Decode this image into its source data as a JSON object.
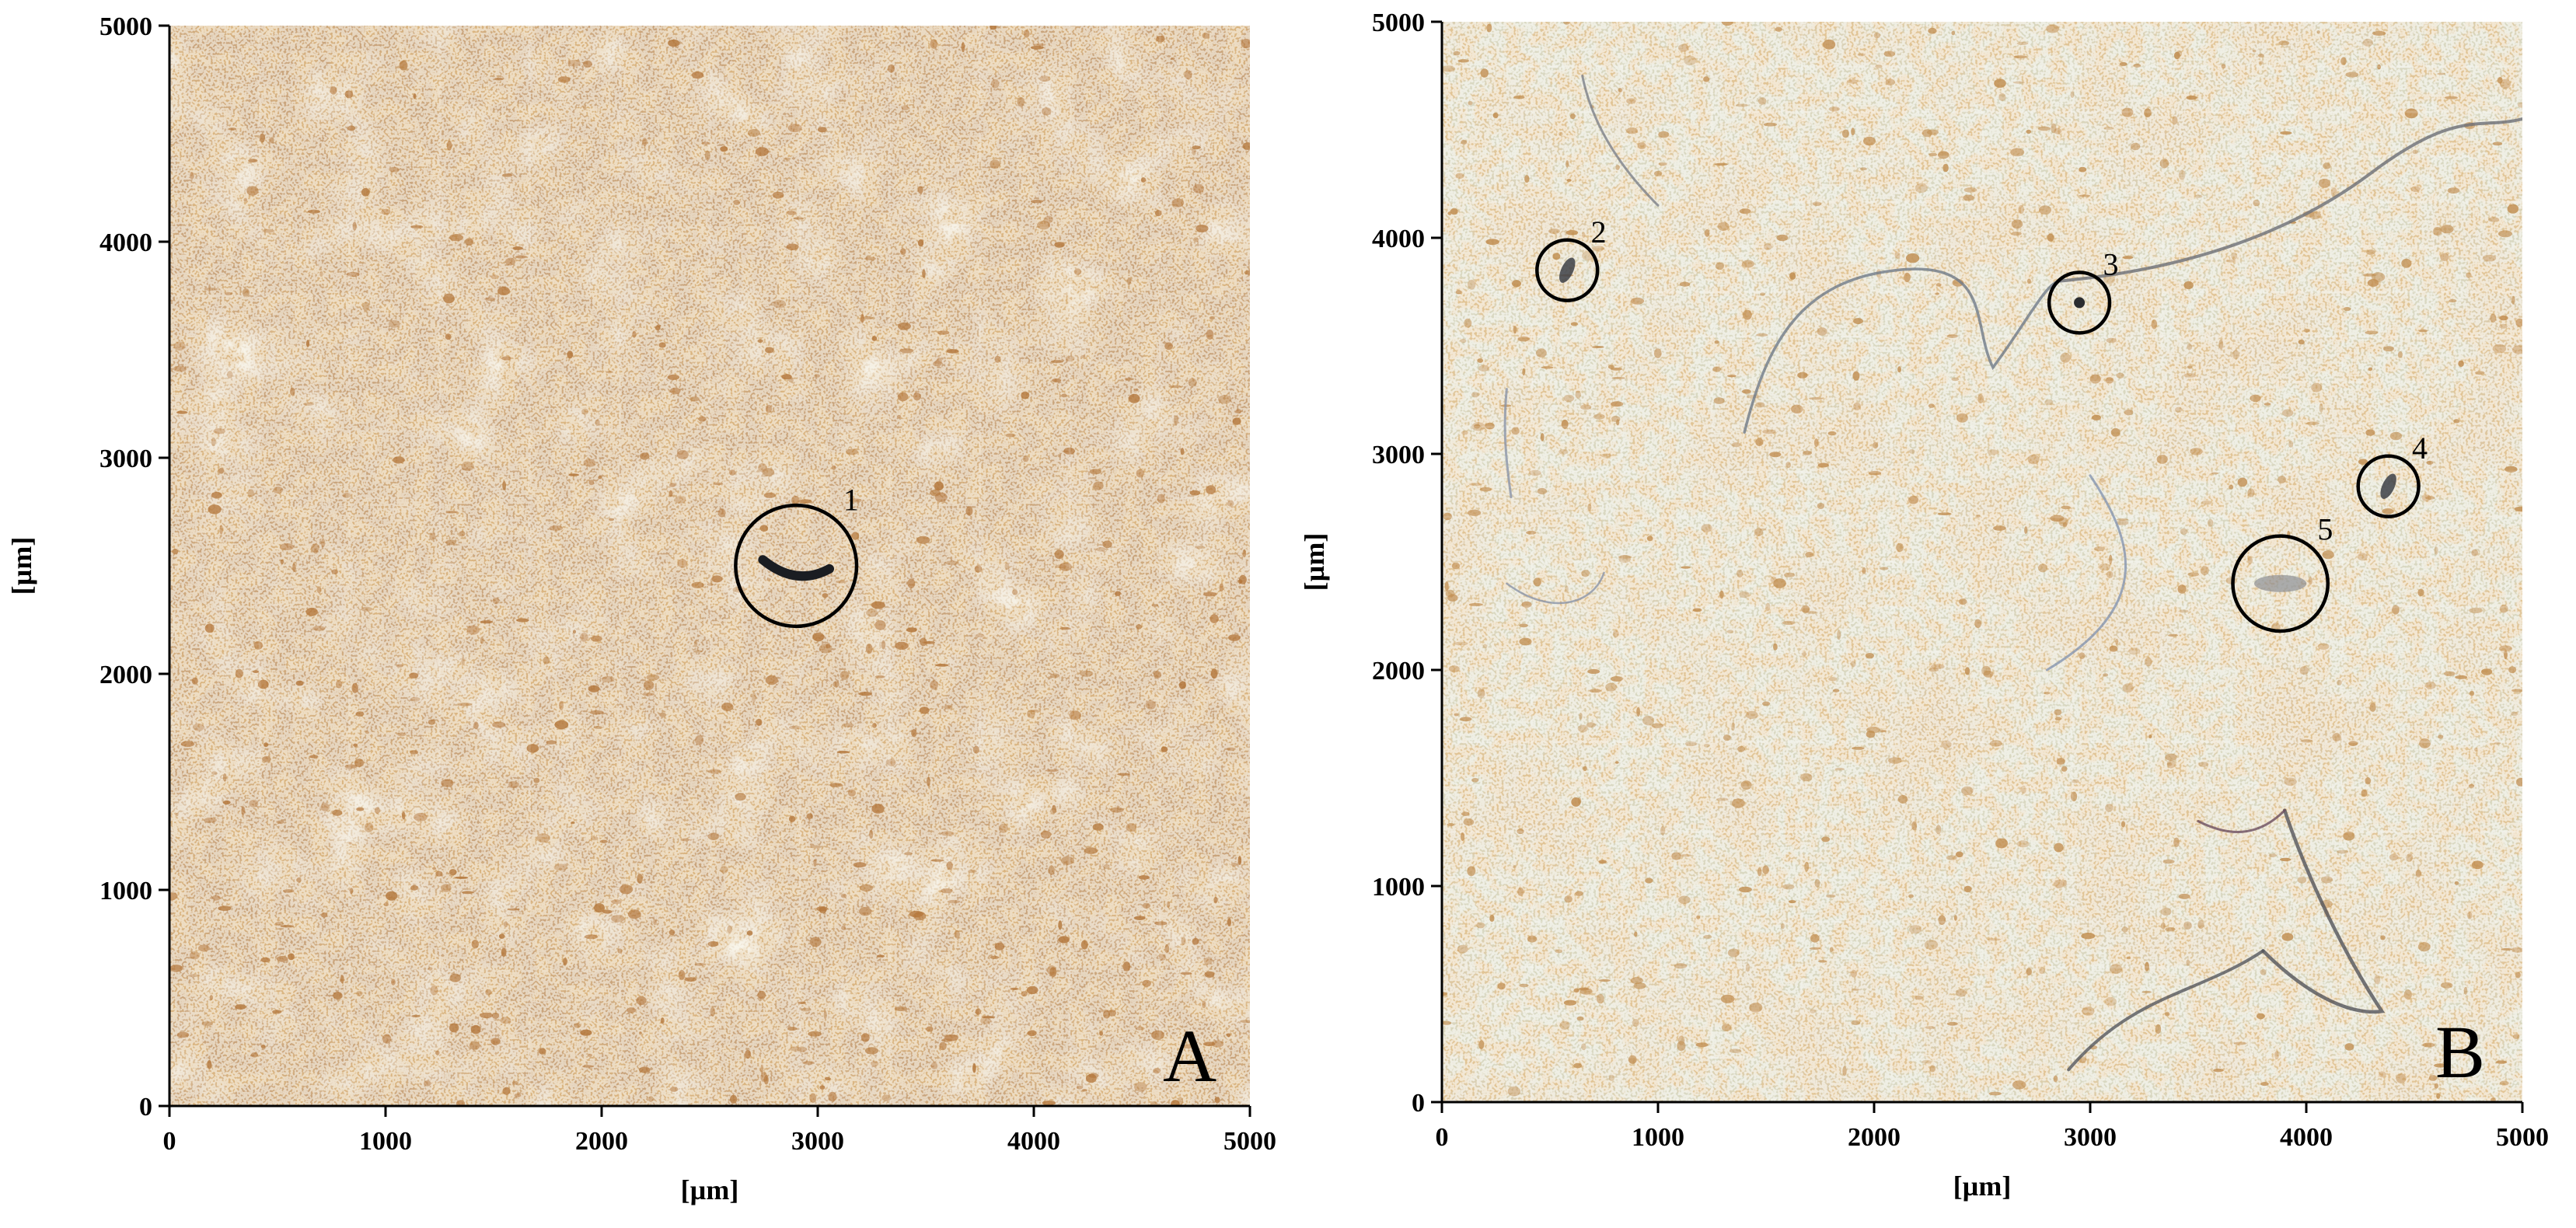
{
  "panels": [
    {
      "letter": "A",
      "x_label": "[µm]",
      "y_label": "[µm]",
      "x_range": [
        0,
        5000
      ],
      "y_range": [
        0,
        5000
      ],
      "x_ticks": [
        "0",
        "1000",
        "2000",
        "3000",
        "4000",
        "5000"
      ],
      "y_ticks": [
        "0",
        "1000",
        "2000",
        "3000",
        "4000",
        "5000"
      ],
      "texture": "tan-beige microscope stitched tile mosaic",
      "base_color": "#c9a47c",
      "speckle_color": "#b3763a",
      "markers": [
        {
          "label": "1",
          "x": 2900,
          "y": 2500,
          "r_um": 280,
          "particle": "dark curved fragment"
        }
      ]
    },
    {
      "letter": "B",
      "x_label": "[µm]",
      "y_label": "[µm]",
      "x_range": [
        0,
        5000
      ],
      "y_range": [
        0,
        5000
      ],
      "x_ticks": [
        "0",
        "1000",
        "2000",
        "3000",
        "4000",
        "5000"
      ],
      "y_ticks": [
        "0",
        "1000",
        "2000",
        "3000",
        "4000",
        "5000"
      ],
      "texture": "pale cream microscope stitched tile mosaic with fibres",
      "base_color": "#d9d8c2",
      "speckle_color": "#c08c4e",
      "markers": [
        {
          "label": "2",
          "x": 580,
          "y": 3850,
          "r_um": 140,
          "particle": "dark fragment"
        },
        {
          "label": "3",
          "x": 2950,
          "y": 3700,
          "r_um": 140,
          "particle": "dark dot"
        },
        {
          "label": "4",
          "x": 4380,
          "y": 2850,
          "r_um": 140,
          "particle": "small fragment"
        },
        {
          "label": "5",
          "x": 3880,
          "y": 2400,
          "r_um": 220,
          "particle": "pale elongated fragment"
        }
      ]
    }
  ]
}
